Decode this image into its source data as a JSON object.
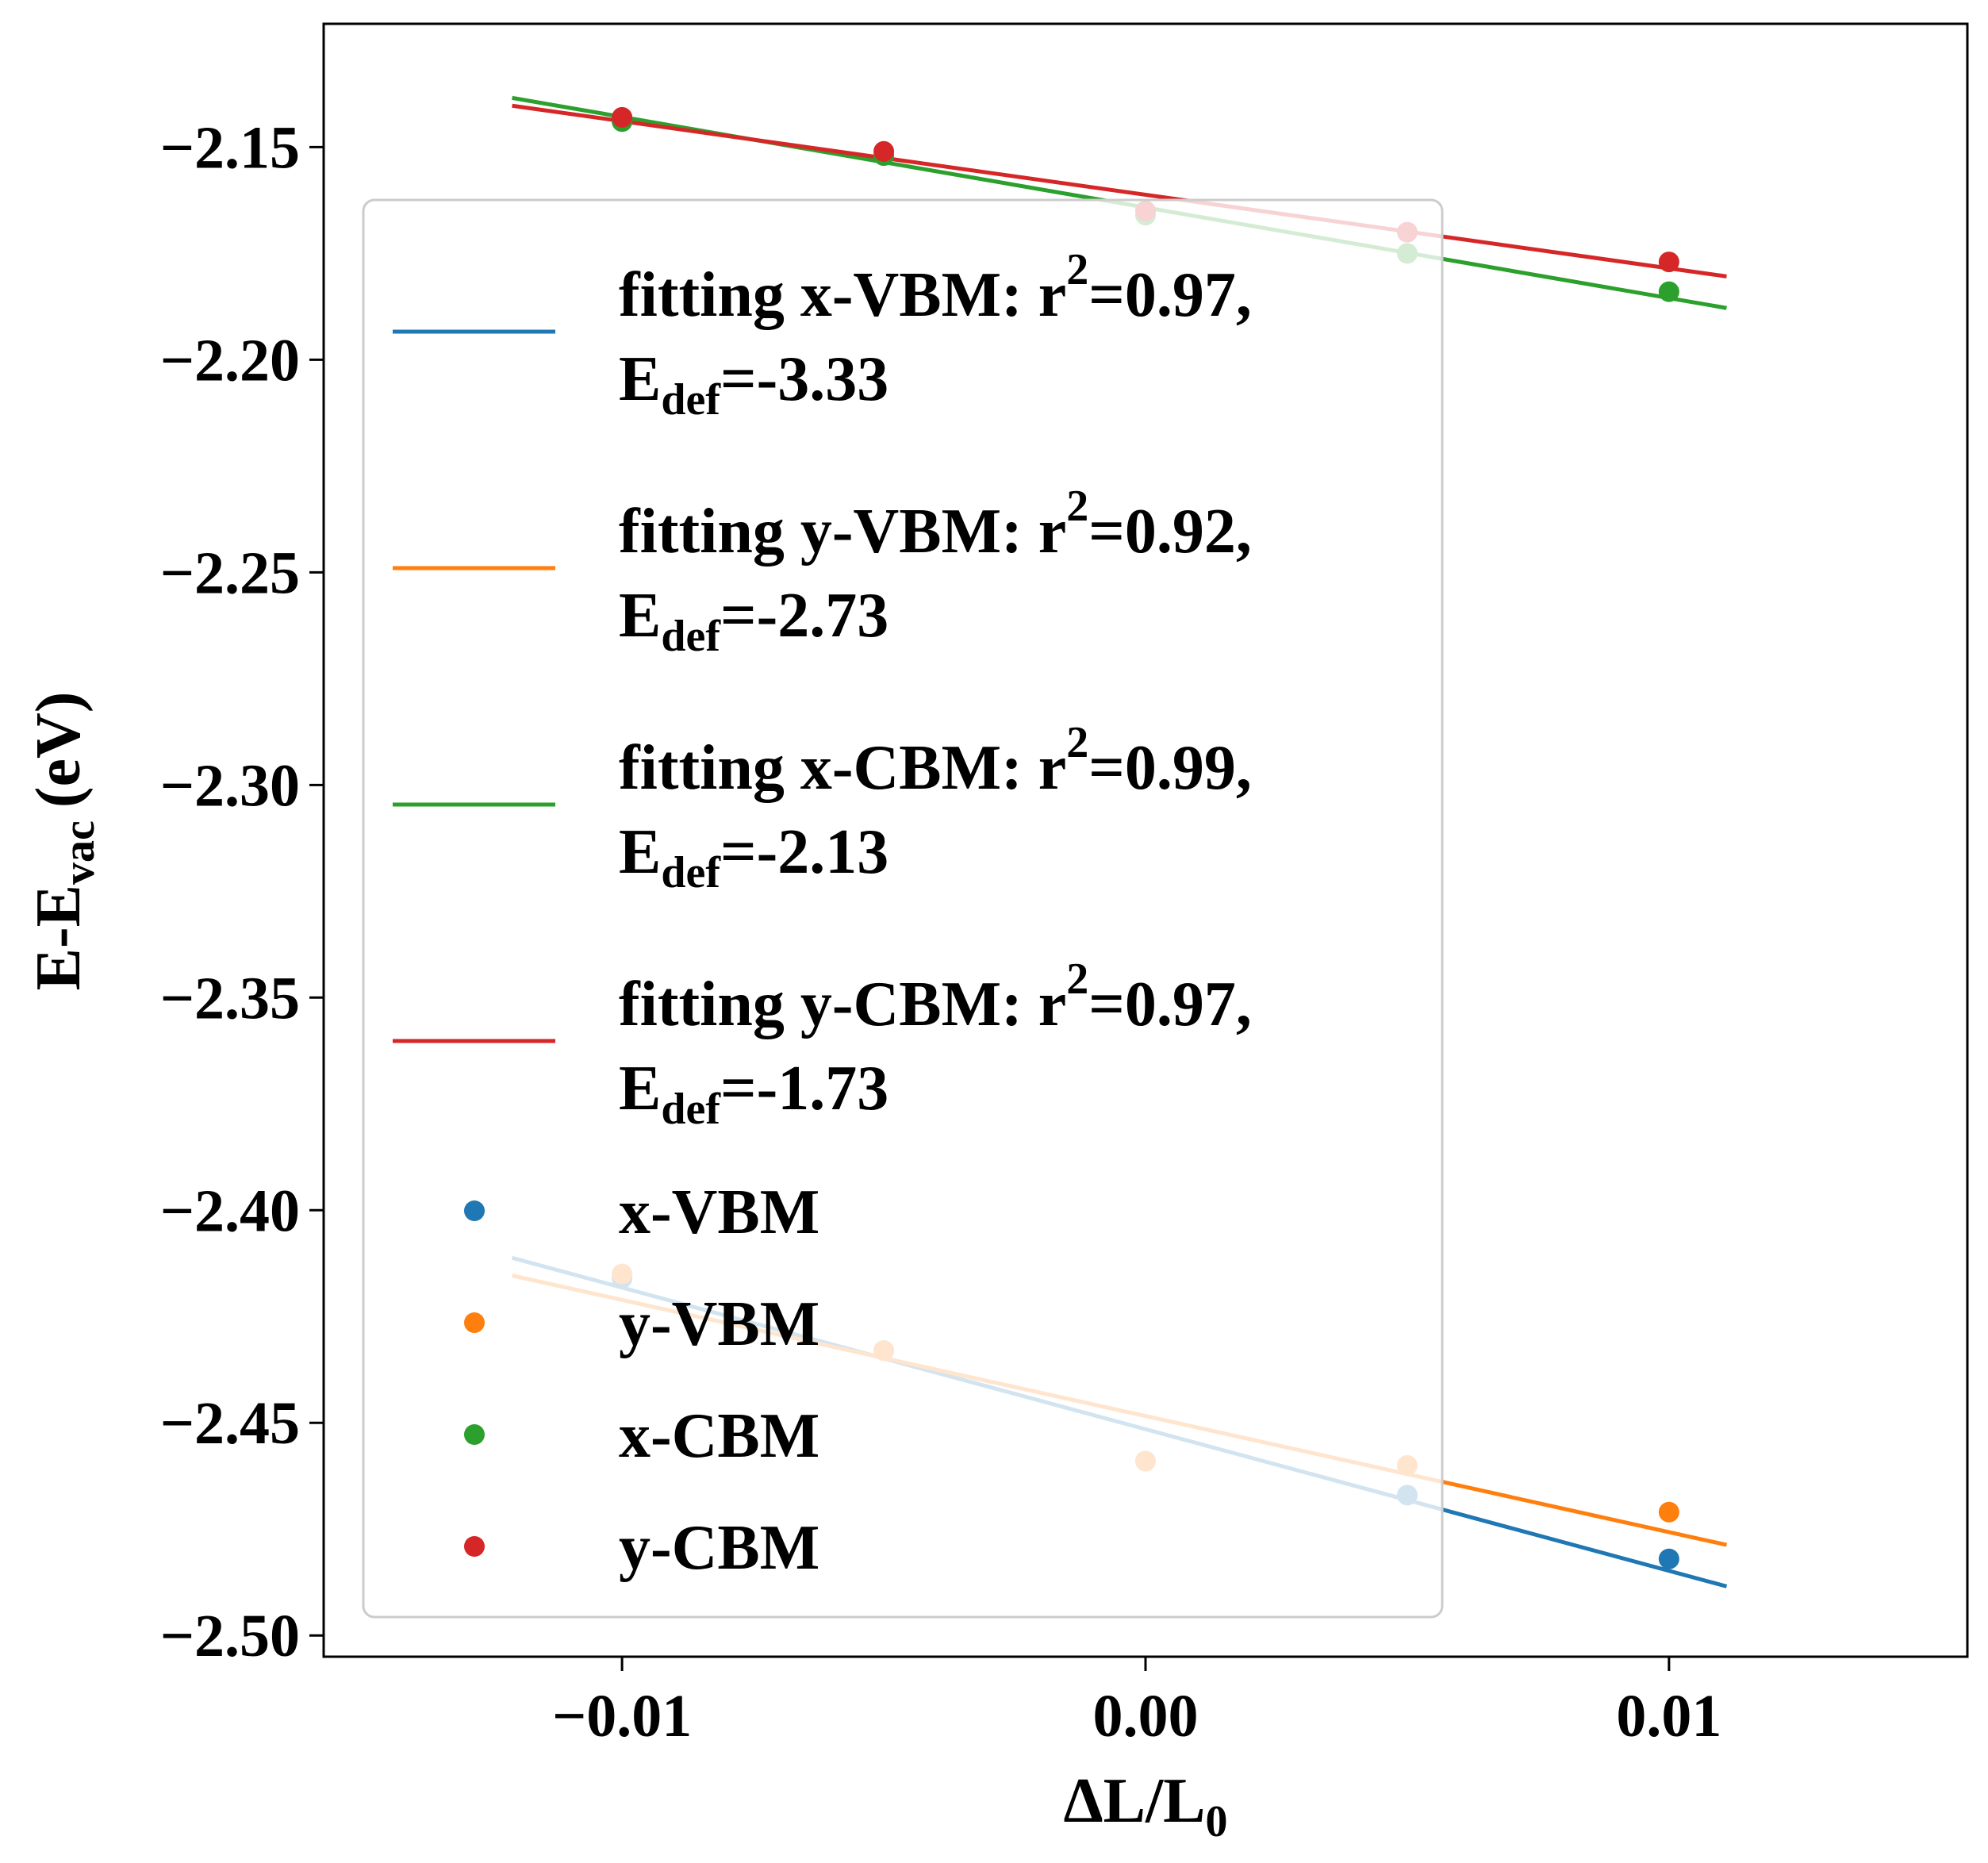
{
  "chart_data": {
    "type": "scatter",
    "xlabel": "ΔL/L",
    "xlabel_subscript": "0",
    "ylabel": "E-E",
    "ylabel_subscript": "vac",
    "ylabel_unit": "(eV)",
    "xlim": [
      -0.0157,
      0.0157
    ],
    "ylim": [
      -2.505,
      -2.121
    ],
    "xticks": [
      -0.01,
      0.0,
      0.01
    ],
    "xtick_labels": [
      "−0.01",
      "0.00",
      "0.01"
    ],
    "yticks": [
      -2.15,
      -2.2,
      -2.25,
      -2.3,
      -2.35,
      -2.4,
      -2.45,
      -2.5
    ],
    "ytick_labels": [
      "−2.15",
      "−2.20",
      "−2.25",
      "−2.30",
      "−2.35",
      "−2.40",
      "−2.45",
      "−2.50"
    ],
    "grid": false,
    "legend_position": "center-left",
    "series": [
      {
        "name": "x-VBM",
        "color": "#1f77b4",
        "x": [
          -0.01,
          -0.005,
          0.0,
          0.005,
          0.01
        ],
        "y": [
          -2.416,
          -2.433,
          -2.459,
          -2.467,
          -2.482
        ],
        "fit": {
          "label": "fitting x-VBM: r",
          "sup": "2",
          "value": "=0.97,",
          "edef_label": "E",
          "edef_sub": "def",
          "edef_value": "=-3.33",
          "x_range": [
            -0.0121,
            0.0111
          ],
          "slope": -3.33,
          "intercept": -2.4515
        }
      },
      {
        "name": "y-VBM",
        "color": "#ff7f0e",
        "x": [
          -0.01,
          -0.005,
          0.0,
          0.005,
          0.01
        ],
        "y": [
          -2.415,
          -2.433,
          -2.459,
          -2.46,
          -2.471
        ],
        "fit": {
          "label": "fitting y-VBM: r",
          "sup": "2",
          "value": "=0.92,",
          "edef_label": "E",
          "edef_sub": "def",
          "edef_value": "=-2.73",
          "x_range": [
            -0.0121,
            0.0111
          ],
          "slope": -2.73,
          "intercept": -2.4484
        }
      },
      {
        "name": "x-CBM",
        "color": "#2ca02c",
        "x": [
          -0.01,
          -0.005,
          0.0,
          0.005,
          0.01
        ],
        "y": [
          -2.144,
          -2.152,
          -2.166,
          -2.175,
          -2.184
        ],
        "fit": {
          "label": "fitting x-CBM: r",
          "sup": "2",
          "value": "=0.99,",
          "edef_label": "E",
          "edef_sub": "def",
          "edef_value": "=-2.13",
          "x_range": [
            -0.0121,
            0.0111
          ],
          "slope": -2.13,
          "intercept": -2.1642
        }
      },
      {
        "name": "y-CBM",
        "color": "#d62728",
        "x": [
          -0.01,
          -0.005,
          0.0,
          0.005,
          0.01
        ],
        "y": [
          -2.143,
          -2.151,
          -2.165,
          -2.17,
          -2.177
        ],
        "fit": {
          "label": "fitting y-CBM: r",
          "sup": "2",
          "value": "=0.97,",
          "edef_label": "E",
          "edef_sub": "def",
          "edef_value": "=-1.73",
          "x_range": [
            -0.0121,
            0.0111
          ],
          "slope": -1.73,
          "intercept": -2.1612
        }
      }
    ]
  }
}
